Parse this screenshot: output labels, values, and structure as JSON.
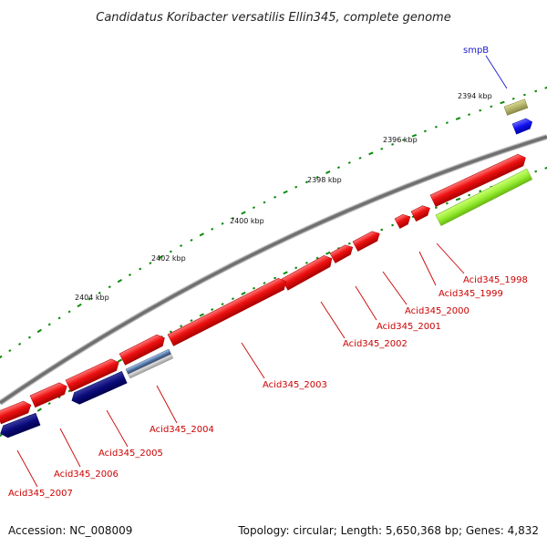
{
  "title": "Candidatus Koribacter versatilis Ellin345, complete genome",
  "footer": {
    "accession": "Accession: NC_008009",
    "stats": "Topology: circular; Length: 5,650,368 bp; Genes: 4,832"
  },
  "scale_labels": [
    "2394 kbp",
    "2396 kbp",
    "2398 kbp",
    "2400 kbp",
    "2402 kbp",
    "2404 kbp"
  ],
  "gene_labels": [
    "smpB",
    "Acid345_1998",
    "Acid345_1999",
    "Acid345_2000",
    "Acid345_2001",
    "Acid345_2002",
    "Acid345_2003",
    "Acid345_2004",
    "Acid345_2005",
    "Acid345_2006",
    "Acid345_2007"
  ],
  "colors": {
    "backbone": "#7a7a7a",
    "forward_gene": "#ee1111",
    "reverse_gene": "#0a0a7a",
    "smpB_gene": "#1111ee",
    "rrna_band": "#b3b36a",
    "highlight_band": "#99ee33",
    "trna": "#5577aa",
    "label_red": "#cc0000",
    "label_blue": "#1a1acc",
    "tick": "#0a8a0a"
  }
}
